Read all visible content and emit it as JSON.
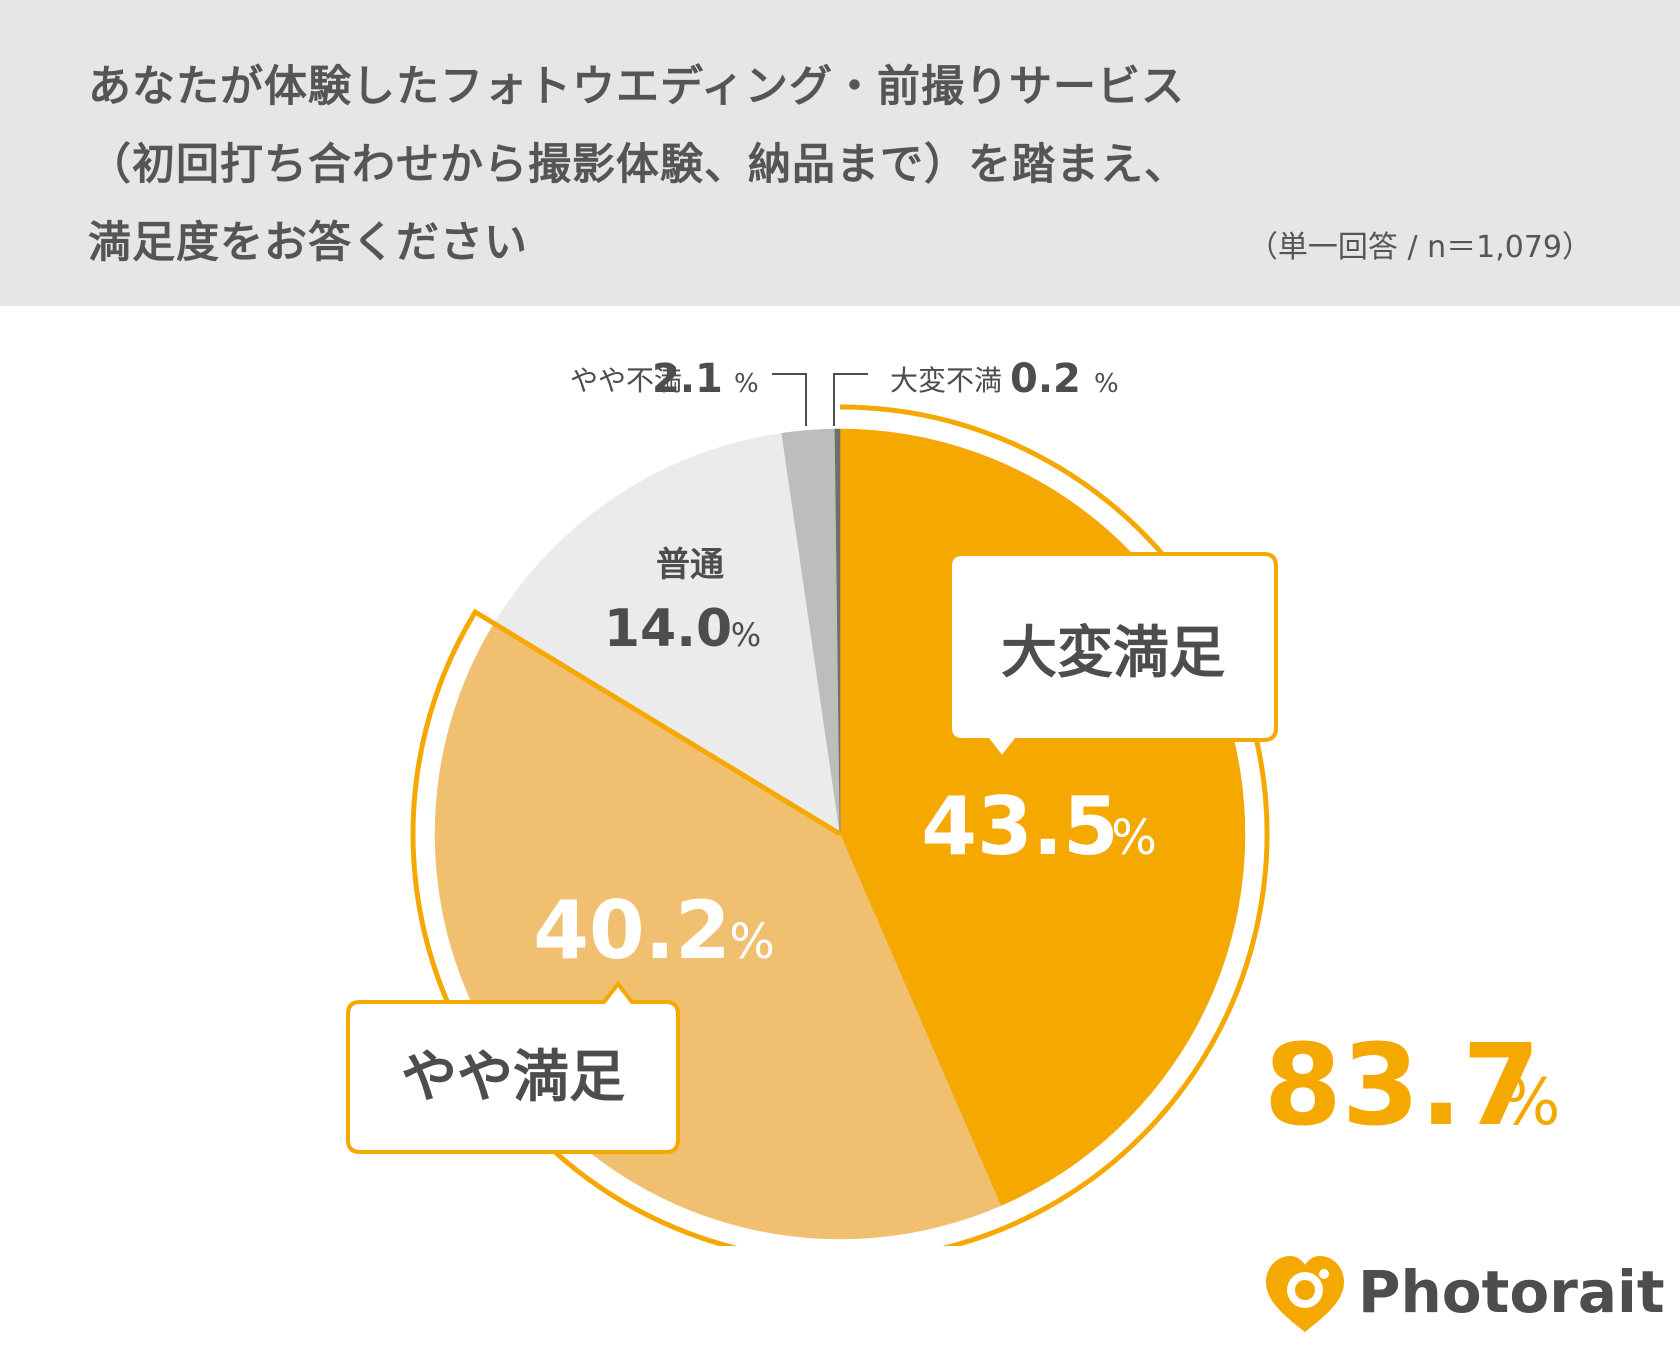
{
  "title_lines": [
    "あなたが体験したフォトウエディング・前撮りサービス",
    "（初回打ち合わせから撮影体験、納品まで）を踏まえ、",
    "満足度をお答ください"
  ],
  "meta": "（単一回答 / n＝1,079）",
  "chart_data": {
    "type": "pie",
    "start": "12 o'clock",
    "direction": "clockwise",
    "slices": [
      {
        "label": "大変満足",
        "value": 43.5,
        "display": "43.5",
        "color": "#f5a800"
      },
      {
        "label": "やや満足",
        "value": 40.2,
        "display": "40.2",
        "color": "#f0c070"
      },
      {
        "label": "普通",
        "value": 14.0,
        "display": "14.0",
        "color": "#ebebeb"
      },
      {
        "label": "やや不満",
        "value": 2.1,
        "display": "2.1",
        "color": "#bdbdbd"
      },
      {
        "label": "大変不満",
        "value": 0.2,
        "display": "0.2",
        "color": "#6e6e6e"
      }
    ],
    "unit": "%",
    "highlight_total": {
      "value": "83.7",
      "unit": "%",
      "color": "#f5a800"
    },
    "accent_color": "#f5a800"
  },
  "logo": {
    "text": "Photorait",
    "icon": "heart-camera-icon",
    "color": "#f5a800"
  }
}
